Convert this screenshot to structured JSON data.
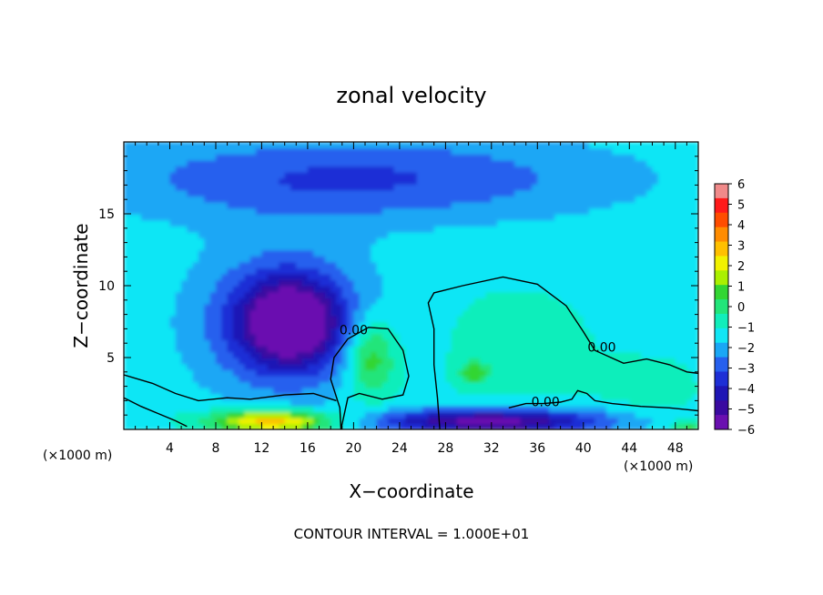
{
  "chart_data": {
    "type": "heatmap",
    "title": "zonal velocity",
    "xlabel": "X−coordinate",
    "ylabel": "Z−coordinate",
    "x_unit_left": "(×1000 m)",
    "x_unit_right": "(×1000 m)",
    "footer": "CONTOUR INTERVAL = 1.000E+01",
    "xlim": [
      0,
      50
    ],
    "ylim": [
      0,
      20
    ],
    "xticks": [
      4,
      8,
      12,
      16,
      20,
      24,
      28,
      32,
      36,
      40,
      44,
      48
    ],
    "yticks": [
      5,
      10,
      15
    ],
    "contour_label": "0.00",
    "contour_label_points": [
      [
        20,
        6.6
      ],
      [
        41.6,
        5.4
      ],
      [
        36.7,
        1.6
      ]
    ],
    "colorbar": {
      "range": [
        -6,
        6
      ],
      "tick_labels": [
        "6",
        "5",
        "4",
        "3",
        "2",
        "1",
        "0",
        "−1",
        "−2",
        "−3",
        "−4",
        "−5",
        "−6"
      ],
      "colors": [
        "#f08a8a",
        "#ff1a1a",
        "#ff4d00",
        "#ff8c00",
        "#ffc000",
        "#f2f200",
        "#aaf000",
        "#33d633",
        "#22e57a",
        "#11eebb",
        "#11e6f5",
        "#1aa7f5",
        "#2660ee",
        "#1e2fd6",
        "#1f16b5",
        "#3a0aa0",
        "#6a10b0"
      ]
    },
    "background_value": -1.3,
    "features": [
      {
        "name": "upper-cyan-band",
        "x": 20,
        "z": 17.5,
        "value": -2,
        "rx": 22,
        "rz": 3
      },
      {
        "name": "negative-core",
        "x": 14.5,
        "z": 7.5,
        "value": -4,
        "rx": 4,
        "rz": 2.8
      },
      {
        "name": "negative-halo",
        "x": 14,
        "z": 7.5,
        "value": -2.5,
        "rx": 7.5,
        "rz": 5
      },
      {
        "name": "positive-plume-west",
        "x": 21.5,
        "z": 5,
        "value": 2.5,
        "rx": 2.2,
        "rz": 2.8
      },
      {
        "name": "positive-dome-east",
        "x": 34,
        "z": 5.5,
        "value": 0.5,
        "rx": 8,
        "rz": 5
      },
      {
        "name": "positive-spot-east",
        "x": 30.5,
        "z": 4,
        "value": 2,
        "rx": 1.2,
        "rz": 0.8
      },
      {
        "name": "positive-tail-far-east",
        "x": 46,
        "z": 3,
        "value": 0.6,
        "rx": 4,
        "rz": 2
      },
      {
        "name": "surface-jet-west",
        "x": 13,
        "z": 0.6,
        "value": 4.5,
        "rx": 5.5,
        "rz": 0.8
      },
      {
        "name": "surface-negative-east",
        "x": 32,
        "z": 0.6,
        "value": -4.5,
        "rx": 10,
        "rz": 0.9
      },
      {
        "name": "surface-positive-far-east",
        "x": 49,
        "z": 0.3,
        "value": 2,
        "rx": 1.2,
        "rz": 0.4
      }
    ],
    "zero_contours": [
      {
        "name": "contour-west-plume",
        "points": [
          [
            18.9,
            0
          ],
          [
            18.8,
            1.5
          ],
          [
            18.0,
            3.5
          ],
          [
            18.3,
            5.0
          ],
          [
            19.5,
            6.3
          ],
          [
            21.3,
            7.1
          ],
          [
            23.0,
            7.0
          ],
          [
            24.3,
            5.5
          ],
          [
            24.8,
            3.7
          ],
          [
            24.3,
            2.4
          ],
          [
            22.5,
            2.1
          ],
          [
            20.5,
            2.5
          ],
          [
            19.5,
            2.2
          ],
          [
            18.9,
            0
          ]
        ]
      },
      {
        "name": "contour-east-dome",
        "points": [
          [
            27.5,
            0
          ],
          [
            27.3,
            2.2
          ],
          [
            27.0,
            4.5
          ],
          [
            27.0,
            7.0
          ],
          [
            26.5,
            8.8
          ],
          [
            27.0,
            9.5
          ],
          [
            29.5,
            10.0
          ],
          [
            33.0,
            10.6
          ],
          [
            36.0,
            10.1
          ],
          [
            38.5,
            8.6
          ],
          [
            40.0,
            6.8
          ],
          [
            41.0,
            5.5
          ],
          [
            43.5,
            4.6
          ],
          [
            45.5,
            4.9
          ],
          [
            47.5,
            4.5
          ],
          [
            49.0,
            4.0
          ],
          [
            50,
            3.9
          ]
        ]
      },
      {
        "name": "contour-east-lower",
        "points": [
          [
            33.5,
            1.5
          ],
          [
            35.0,
            1.8
          ],
          [
            36.5,
            1.8
          ],
          [
            38.0,
            1.9
          ],
          [
            39.0,
            2.1
          ],
          [
            39.5,
            2.7
          ],
          [
            40.3,
            2.5
          ],
          [
            41.0,
            2.0
          ],
          [
            42.5,
            1.8
          ],
          [
            45.0,
            1.6
          ],
          [
            47.5,
            1.5
          ],
          [
            50,
            1.3
          ]
        ]
      },
      {
        "name": "contour-west-surface",
        "points": [
          [
            0,
            3.8
          ],
          [
            2.5,
            3.2
          ],
          [
            4.5,
            2.5
          ],
          [
            6.5,
            2.0
          ],
          [
            9.0,
            2.2
          ],
          [
            11.0,
            2.1
          ],
          [
            14.0,
            2.4
          ],
          [
            16.5,
            2.5
          ],
          [
            18.5,
            2.0
          ]
        ]
      },
      {
        "name": "contour-west-lower",
        "points": [
          [
            0,
            2.2
          ],
          [
            1.5,
            1.6
          ],
          [
            3.0,
            1.1
          ],
          [
            4.5,
            0.6
          ],
          [
            5.5,
            0.2
          ]
        ]
      }
    ]
  }
}
